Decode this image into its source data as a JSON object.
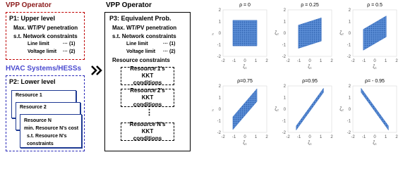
{
  "left": {
    "operator_title": "VPP Operator",
    "upper": {
      "title": "P1: Upper level",
      "objective": "Max. WT/PV penetration",
      "constraints_title": "s.t. Network constraints",
      "constraints": [
        {
          "label": "Line limit",
          "ref": "··· (1)"
        },
        {
          "label": "Voltage limit",
          "ref": "··· (2)"
        }
      ]
    },
    "resources_title": "HVAC Systems/HESSs",
    "lower": {
      "title": "P2: Lower level",
      "resources": [
        "Resource 1",
        "Resource 2",
        "Resource N"
      ],
      "objective": "min. Resource N's cost",
      "constraints": "s.t. Resource N's constraints"
    }
  },
  "middle": {
    "operator_title": "VPP Operator",
    "title": "P3: Equivalent Prob.",
    "objective": "Max. WT/PV penetration",
    "constraints_title": "s.t. Network constraints",
    "constraints": [
      {
        "label": "Line limit",
        "ref": "··· (1)"
      },
      {
        "label": "Voltage limit",
        "ref": "··· (2)"
      }
    ],
    "resource_constraints_title": "Resource constraints",
    "kkt": [
      "Resource 1's KKT conditions",
      "Resource 2's KKT conditions",
      "Resource N's KKT conditions"
    ],
    "ellipsis": "⋮"
  },
  "plots": [
    {
      "title": "ρ = 0",
      "xlabel": "ζ₁",
      "ylabel": "ζ₂",
      "xticks": [
        -2,
        -1,
        0,
        1,
        2
      ],
      "yticks": [
        -2,
        -1,
        0,
        1,
        2
      ]
    },
    {
      "title": "ρ = 0.25",
      "xlabel": "ζ₁",
      "ylabel": "ζ₂",
      "xticks": [
        -2,
        -1,
        0,
        1,
        2
      ],
      "yticks": [
        -2,
        -1,
        0,
        1,
        2
      ]
    },
    {
      "title": "ρ = 0.5",
      "xlabel": "ζ₁",
      "ylabel": "ζ₂",
      "xticks": [
        -2,
        -1,
        0,
        1,
        2
      ],
      "yticks": [
        -2,
        -1,
        0,
        1,
        2
      ]
    },
    {
      "title": "ρ=0.75",
      "xlabel": "ζ₁",
      "ylabel": "ζ₂",
      "xticks": [
        -2,
        -1,
        0,
        1,
        2
      ],
      "yticks": [
        -2,
        -1,
        0,
        1,
        2
      ]
    },
    {
      "title": "ρ=0.95",
      "xlabel": "ζ₁",
      "ylabel": "ζ₂",
      "xticks": [
        -2,
        -1,
        0,
        1,
        2
      ],
      "yticks": [
        -2,
        -1,
        0,
        1,
        2
      ]
    },
    {
      "title": "ρ= - 0.95",
      "xlabel": "ζ₁",
      "ylabel": "ζ₂",
      "xticks": [
        -2,
        -1,
        0,
        1,
        2
      ],
      "yticks": [
        -2,
        -1,
        0,
        1,
        2
      ]
    }
  ]
}
